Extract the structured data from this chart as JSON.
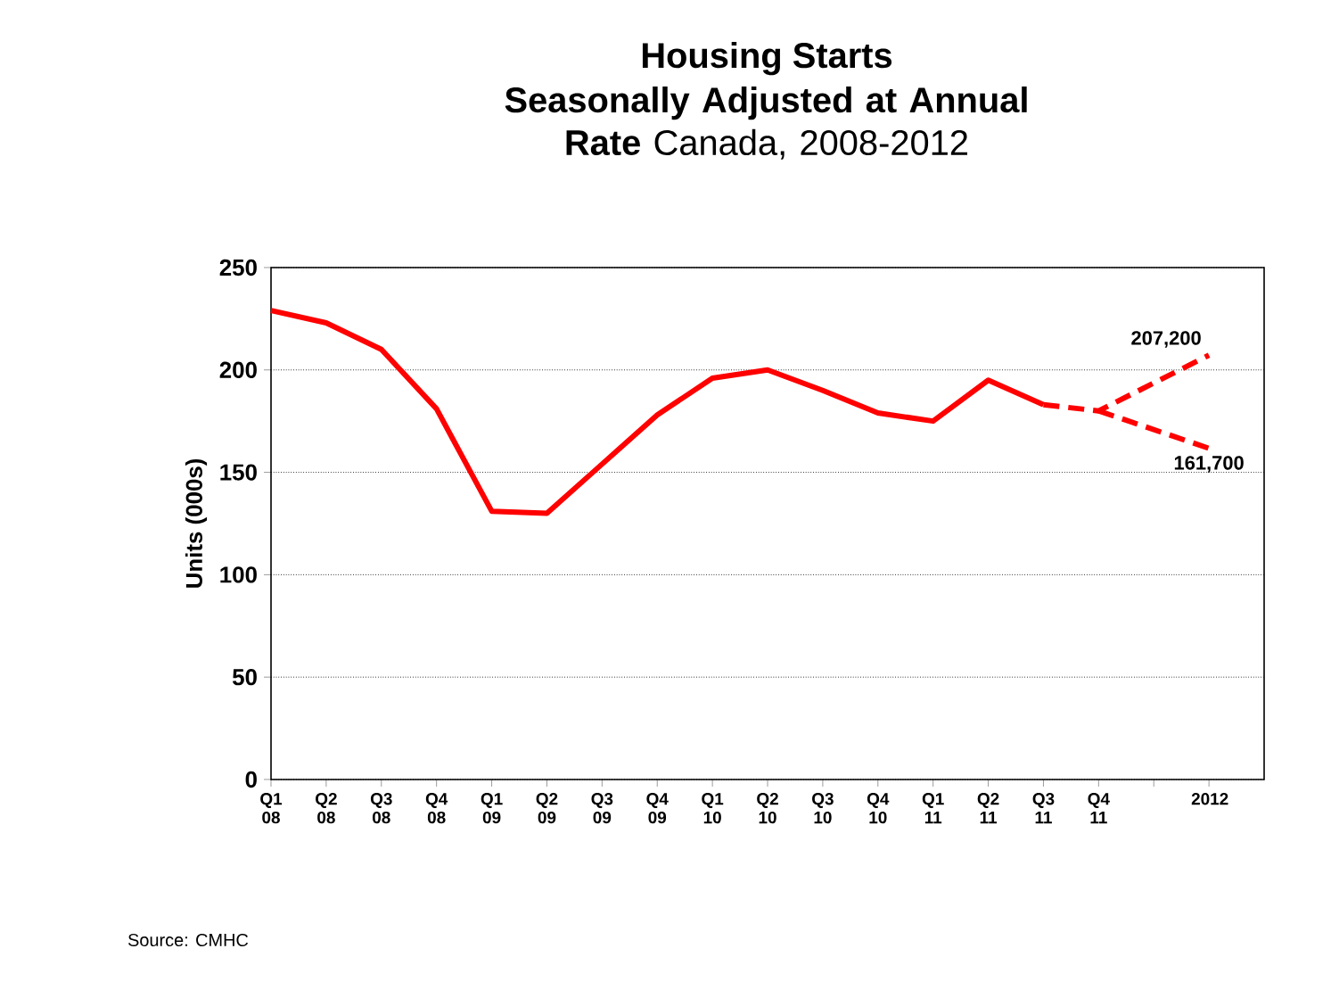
{
  "chart_data": {
    "type": "line",
    "title": "Housing Starts",
    "subtitle": "**Seasonally Adjusted at Annual Rate** Canada, 2008-2012",
    "ylabel": "Units (000s)",
    "categories": [
      "Q1 08",
      "Q2 08",
      "Q3 08",
      "Q4 08",
      "Q1 09",
      "Q2 09",
      "Q3 09",
      "Q4 09",
      "Q1 10",
      "Q2 10",
      "Q3 10",
      "Q4 10",
      "Q1 11",
      "Q2 11",
      "Q3 11",
      "Q4 11",
      null,
      "2012"
    ],
    "series": [
      {
        "color": "#ff0000",
        "line_style": "solid",
        "values": [
          229,
          223,
          210,
          181,
          131,
          130,
          154,
          178,
          196,
          200,
          190,
          179,
          175,
          195,
          183,
          null,
          null,
          null
        ]
      },
      {
        "color": "#ff0000",
        "line_style": "dashed",
        "values": [
          null,
          null,
          null,
          null,
          null,
          null,
          null,
          null,
          null,
          null,
          null,
          null,
          null,
          null,
          183,
          180,
          null,
          207.2
        ]
      },
      {
        "color": "#ff0000",
        "line_style": "dashed",
        "values": [
          null,
          null,
          null,
          null,
          null,
          null,
          null,
          null,
          null,
          null,
          null,
          null,
          null,
          null,
          null,
          180,
          null,
          161.7
        ]
      }
    ],
    "ylim": [
      0,
      250
    ],
    "yticks": [
      0,
      50,
      100,
      150,
      200,
      250
    ],
    "grid": "y",
    "marker": "none",
    "annotations": [
      {
        "text": "207,200",
        "x": "2012",
        "y": 207.2
      },
      {
        "text": "161,700",
        "x": "2012",
        "y": 161.7
      },
      "Source:  CMHC"
    ]
  }
}
